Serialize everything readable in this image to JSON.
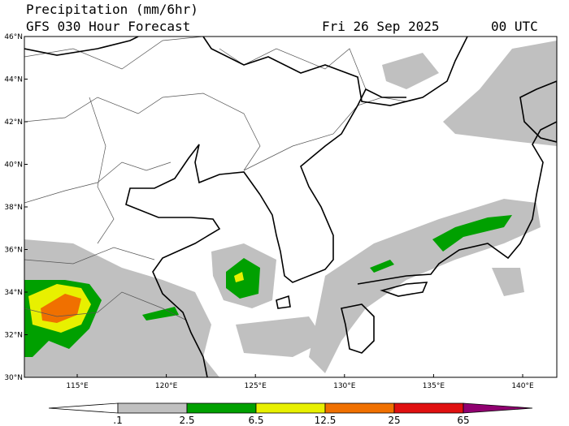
{
  "header": {
    "title": "Precipitation (mm/6hr)",
    "subtitle": "GFS 030 Hour Forecast",
    "date": "Fri 26 Sep 2025",
    "time": "00 UTC"
  },
  "map": {
    "lat_labels": [
      "46°N",
      "44°N",
      "42°N",
      "40°N",
      "38°N",
      "36°N",
      "34°N",
      "32°N",
      "30°N"
    ],
    "lon_labels": [
      "115°E",
      "120°E",
      "125°E",
      "130°E",
      "135°E",
      "140°E"
    ]
  },
  "legend": {
    "labels": [
      ".1",
      "2.5",
      "6.5",
      "12.5",
      "25",
      "65"
    ],
    "colors": [
      "#ffffff",
      "#c0c0c0",
      "#00a000",
      "#e8f000",
      "#f07000",
      "#e01010",
      "#900070"
    ]
  }
}
